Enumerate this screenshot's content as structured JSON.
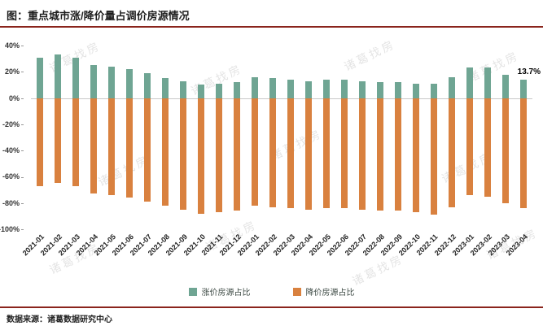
{
  "title": "图：重点城市涨/降价量占调价房源情况",
  "source": "数据来源：诸葛数据研究中心",
  "watermark": "诸葛找房",
  "colors": {
    "up": "#6fa593",
    "down": "#d9813f",
    "rule": "#8a241c"
  },
  "legend": [
    {
      "label": "涨价房源占比",
      "color": "#6fa593"
    },
    {
      "label": "降价房源占比",
      "color": "#d9813f"
    }
  ],
  "chart_data": {
    "type": "bar",
    "title": "图：重点城市涨/降价量占调价房源情况",
    "xlabel": "",
    "ylabel": "",
    "ylim": [
      -100,
      40
    ],
    "yticks": [
      40,
      20,
      0,
      -20,
      -40,
      -60,
      -80,
      -100
    ],
    "grid": false,
    "legend_position": "bottom",
    "categories": [
      "2021-01",
      "2021-02",
      "2021-03",
      "2021-04",
      "2021-05",
      "2021-06",
      "2021-07",
      "2021-08",
      "2021-09",
      "2021-10",
      "2021-11",
      "2021-12",
      "2022-01",
      "2022-02",
      "2022-03",
      "2022-04",
      "2022-05",
      "2022-06",
      "2022-07",
      "2022-08",
      "2022-09",
      "2022-10",
      "2022-11",
      "2022-12",
      "2023-01",
      "2023-02",
      "2023-03",
      "2023-04"
    ],
    "series": [
      {
        "name": "涨价房源占比",
        "color": "#6fa593",
        "values": [
          31,
          33,
          31,
          25,
          24,
          22,
          19,
          15,
          13,
          10,
          11,
          12,
          16,
          15,
          14,
          13,
          14,
          14,
          13,
          12,
          12,
          11,
          11,
          16,
          23,
          23,
          18,
          13.7
        ]
      },
      {
        "name": "降价房源占比",
        "color": "#d9813f",
        "values": [
          -67,
          -65,
          -67,
          -73,
          -74,
          -76,
          -79,
          -82,
          -85,
          -88,
          -87,
          -86,
          -82,
          -83,
          -84,
          -85,
          -84,
          -84,
          -85,
          -86,
          -86,
          -87,
          -89,
          -83,
          -74,
          -75,
          -80,
          -84
        ]
      }
    ],
    "annotation": {
      "text": "13.7%",
      "target": "2023-04"
    }
  }
}
